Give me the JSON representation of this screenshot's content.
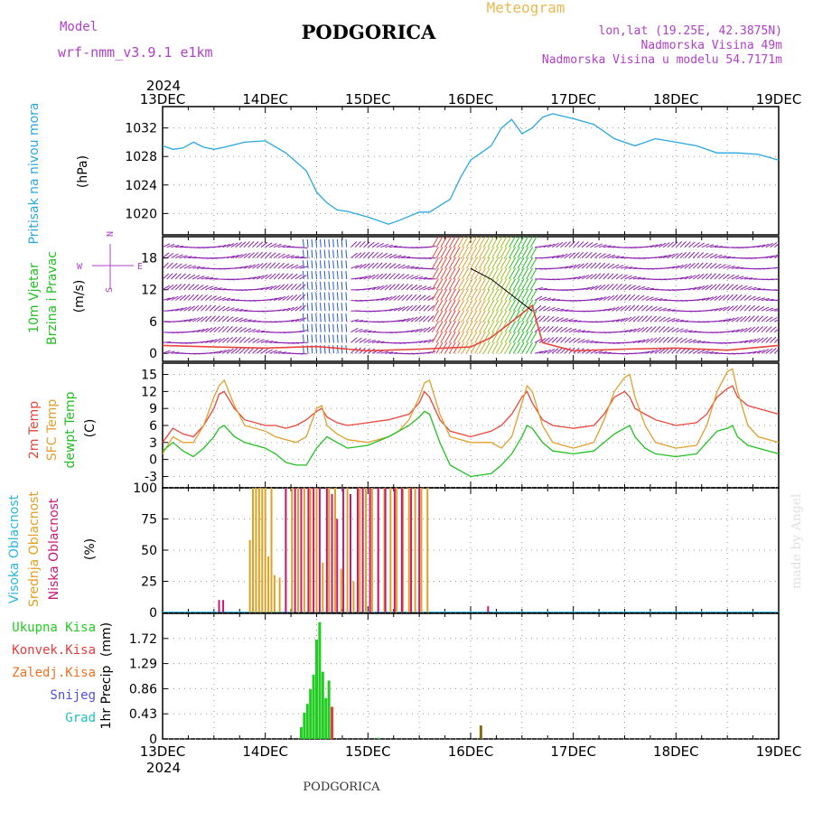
{
  "header": {
    "model_label": "Model",
    "model_name": "wrf-nmm_v3.9.1 e1km",
    "station_title": "PODGORICA",
    "meteogram_label": "Meteogram",
    "lonlat": "lon,lat (19.25E, 42.3875N)",
    "elevation": "Nadmorska Visina 49m",
    "model_elevation": "Nadmorska Visina u modelu 54.7171m",
    "footer_station": "PODGORICA",
    "credit": "made by Angel"
  },
  "time_axis": {
    "year": "2024",
    "days": [
      "13DEC",
      "14DEC",
      "15DEC",
      "16DEC",
      "17DEC",
      "18DEC",
      "19DEC"
    ]
  },
  "colors": {
    "pressure": "#2aa7e0",
    "wind_barb": "#8a1fb0",
    "wind_blue": "#2255dd",
    "temp2m": "#e8453c",
    "sfc_temp": "#e0a030",
    "dewpoint": "#22c022",
    "high_cloud": "#29b6e0",
    "mid_cloud": "#e0a020",
    "low_cloud": "#c8187a",
    "precip_total": "#22cc22",
    "precip_conv": "#e83c3c",
    "precip_frozen": "#f07020",
    "snow": "#5050e0",
    "hail": "#20c0c0",
    "grid": "#999999"
  },
  "chart_data": [
    {
      "type": "line",
      "panel": "pressure",
      "ylabel_1": "Pritisak na nivou mora",
      "ylabel_2": "(hPa)",
      "ylim": [
        1017,
        1035
      ],
      "yticks": [
        "1020",
        "1024",
        "1028",
        "1032"
      ],
      "x_days": [
        0,
        0.1,
        0.2,
        0.3,
        0.4,
        0.5,
        0.6,
        0.8,
        1.0,
        1.2,
        1.4,
        1.5,
        1.6,
        1.7,
        1.8,
        2.0,
        2.2,
        2.3,
        2.5,
        2.6,
        2.8,
        2.9,
        3.0,
        3.1,
        3.2,
        3.3,
        3.4,
        3.5,
        3.6,
        3.7,
        3.8,
        4.0,
        4.2,
        4.4,
        4.6,
        4.8,
        5.0,
        5.2,
        5.4,
        5.6,
        5.8,
        6.0
      ],
      "series": [
        {
          "values": [
            1029.5,
            1029,
            1029.2,
            1030,
            1029.3,
            1029,
            1029.3,
            1030,
            1030.2,
            1028.5,
            1026,
            1023,
            1021.5,
            1020.5,
            1020.3,
            1019.5,
            1018.5,
            1019,
            1020.2,
            1020.2,
            1022,
            1025,
            1027.5,
            1028.5,
            1029.5,
            1032,
            1033.2,
            1031.2,
            1032,
            1033.5,
            1034,
            1033.3,
            1032.5,
            1030.5,
            1029.5,
            1030.5,
            1030,
            1029.5,
            1028.5,
            1028.5,
            1028.3,
            1027.5
          ]
        }
      ]
    },
    {
      "type": "scatter",
      "panel": "wind",
      "ylabel_1": "10m Vjetar",
      "ylabel_2": "Brzina i Pravac",
      "ylabel_3": "(m/s)",
      "compass": {
        "n": "N",
        "w": "W",
        "e": "E",
        "s": "S"
      },
      "ylim": [
        -1.5,
        22
      ],
      "yticks": [
        "0",
        "6",
        "12",
        "18"
      ],
      "x_days": [
        0,
        0.5,
        1.0,
        1.5,
        2.0,
        2.5,
        3.0,
        3.2,
        3.4,
        3.6,
        3.7,
        4.0,
        4.5,
        5.0,
        5.5,
        6.0
      ],
      "series": [
        {
          "values": [
            1.5,
            1.2,
            1.0,
            1.3,
            0.5,
            0.8,
            1.2,
            3,
            6,
            9,
            2,
            0.5,
            0.8,
            1.0,
            0.6,
            1.5
          ]
        },
        {
          "values": [
            null,
            null,
            null,
            null,
            null,
            null,
            16,
            14,
            11,
            8,
            null,
            null,
            null,
            null,
            null,
            null
          ]
        }
      ]
    },
    {
      "type": "line",
      "panel": "temperature",
      "ylabel_1": "2m Temp",
      "ylabel_2": "SFC Temp",
      "ylabel_3": "dewpt Temp",
      "ylabel_4": "(C)",
      "ylim": [
        -5,
        17
      ],
      "yticks": [
        "-3",
        "0",
        "3",
        "6",
        "9",
        "12",
        "15"
      ],
      "x_days": [
        0,
        0.1,
        0.2,
        0.3,
        0.4,
        0.5,
        0.55,
        0.6,
        0.7,
        0.8,
        1.0,
        1.1,
        1.2,
        1.3,
        1.4,
        1.5,
        1.55,
        1.6,
        1.7,
        1.8,
        2.0,
        2.2,
        2.3,
        2.4,
        2.5,
        2.55,
        2.6,
        2.7,
        2.8,
        3.0,
        3.2,
        3.3,
        3.4,
        3.5,
        3.55,
        3.6,
        3.7,
        3.8,
        4.0,
        4.2,
        4.3,
        4.4,
        4.5,
        4.55,
        4.6,
        4.7,
        4.8,
        5.0,
        5.2,
        5.3,
        5.4,
        5.5,
        5.55,
        5.6,
        5.7,
        5.8,
        6.0
      ],
      "series": [
        {
          "name": "2m Temp",
          "values": [
            3,
            5.5,
            4.5,
            4,
            6,
            9,
            11.5,
            12,
            9,
            7,
            6,
            6,
            5.5,
            6,
            7,
            8.5,
            9,
            7.5,
            6.5,
            6,
            6.5,
            7,
            7.5,
            8,
            10,
            12,
            11,
            7,
            5,
            4,
            5,
            6,
            8,
            11,
            12,
            10,
            7,
            6,
            5.5,
            6,
            8,
            11,
            12,
            11,
            9,
            8,
            7,
            6,
            6.5,
            8,
            11,
            12.5,
            13,
            11,
            9.5,
            9,
            8
          ]
        },
        {
          "name": "SFC Temp",
          "values": [
            1,
            4,
            3,
            3,
            6,
            11,
            13,
            14,
            9.5,
            6,
            5,
            4,
            3.5,
            3,
            4,
            9,
            9.5,
            6,
            4.5,
            3.5,
            3,
            4,
            5,
            7,
            11,
            13.5,
            14,
            8,
            4,
            3,
            3,
            2,
            4,
            10,
            13,
            12,
            6,
            3,
            2,
            3,
            7,
            12,
            14.5,
            15,
            11,
            6,
            3,
            2,
            2.5,
            6,
            12,
            15.5,
            16,
            12,
            6,
            4,
            3
          ]
        },
        {
          "name": "dewpt Temp",
          "values": [
            1.5,
            3,
            1.5,
            0.5,
            2,
            4,
            5.5,
            6,
            4,
            3,
            2,
            1,
            -0.5,
            -1,
            -1,
            2,
            3,
            4,
            3,
            2,
            2.5,
            4,
            5,
            6,
            7.5,
            8.5,
            8,
            3,
            -1,
            -3,
            -2.5,
            -1,
            1,
            4,
            6,
            5.5,
            3,
            1.5,
            1,
            1.5,
            3,
            4.5,
            5.5,
            6,
            4,
            2,
            1,
            0.5,
            1,
            3,
            5,
            5.5,
            6,
            4,
            2.5,
            2,
            1
          ]
        }
      ]
    },
    {
      "type": "bar",
      "panel": "clouds",
      "ylabel_1": "Visoka Oblacnost",
      "ylabel_2": "Srednja Oblacnost",
      "ylabel_3": "Niska Oblacnost",
      "ylabel_4": "(%)",
      "ylim": [
        0,
        100
      ],
      "yticks": [
        "0",
        "25",
        "50",
        "75",
        "100"
      ],
      "series": [
        {
          "name": "Srednja Oblacnost",
          "x_days": [
            0.85,
            0.88,
            0.91,
            0.94,
            0.97,
            1.0,
            1.03,
            1.06,
            1.09,
            1.14,
            1.2,
            1.26,
            1.32,
            1.38,
            1.44,
            1.5,
            1.56,
            1.62,
            1.68,
            1.74,
            1.8,
            1.86,
            1.92,
            1.98,
            2.04,
            2.1,
            2.16,
            2.22,
            2.28,
            2.34,
            2.4,
            2.46,
            2.52,
            2.58
          ],
          "values": [
            58,
            100,
            100,
            100,
            100,
            100,
            45,
            100,
            30,
            28,
            100,
            100,
            100,
            100,
            100,
            100,
            40,
            100,
            100,
            35,
            100,
            25,
            100,
            100,
            100,
            100,
            100,
            100,
            100,
            100,
            100,
            100,
            100,
            100
          ]
        },
        {
          "name": "Niska Oblacnost",
          "x_days": [
            0.55,
            0.59,
            1.2,
            1.29,
            1.35,
            1.42,
            1.47,
            1.53,
            1.6,
            1.65,
            1.7,
            1.76,
            1.83,
            1.9,
            1.95,
            2.02,
            2.1,
            2.17,
            2.26,
            2.33,
            2.42,
            2.5,
            3.17
          ],
          "values": [
            10,
            10,
            100,
            100,
            100,
            100,
            100,
            100,
            100,
            95,
            75,
            100,
            95,
            100,
            100,
            100,
            100,
            100,
            100,
            100,
            100,
            100,
            5
          ]
        }
      ]
    },
    {
      "type": "bar",
      "panel": "precip",
      "ylabel_1": "1hr Precip",
      "ylabel_2": "(mm)",
      "legend": [
        "Ukupna Kisa",
        "Konvek.Kisa",
        "Zaledj.Kisa",
        "Snijeg",
        "Grad"
      ],
      "ylim": [
        0,
        2.15
      ],
      "yticks": [
        "0",
        "0.43",
        "0.86",
        "1.29",
        "1.72"
      ],
      "series": [
        {
          "name": "Ukupna Kisa",
          "x_days": [
            1.35,
            1.38,
            1.41,
            1.44,
            1.47,
            1.5,
            1.53,
            1.56,
            1.59,
            1.62,
            1.65,
            2.1
          ],
          "values": [
            0.2,
            0.45,
            0.6,
            0.85,
            1.1,
            1.7,
            2.0,
            1.15,
            0.7,
            1.0,
            0.2,
            0.02
          ]
        },
        {
          "name": "Konvek.Kisa",
          "x_days": [
            1.65
          ],
          "values": [
            0.55
          ]
        },
        {
          "name": "Zaledj.Kisa",
          "x_days": [
            3.1
          ],
          "values": [
            0.23
          ]
        }
      ]
    }
  ]
}
